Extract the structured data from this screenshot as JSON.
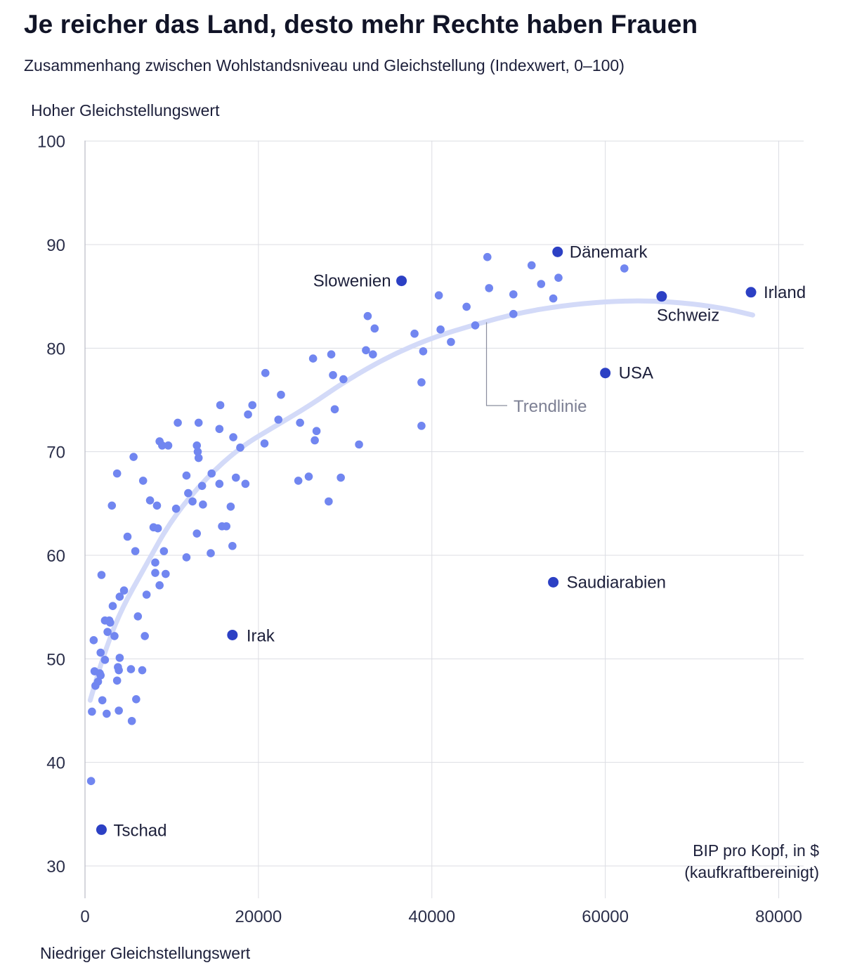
{
  "title": "Je reicher das Land, desto mehr Rechte haben Frauen",
  "subtitle": "Zusammenhang zwischen Wohlstandsniveau und Gleichstellung (Indexwert, 0–100)",
  "colors": {
    "point": "#7186f0",
    "highlight": "#2c40c4",
    "trend": "#d3daf8",
    "grid": "#dcdde3",
    "axis": "#b9bbc6"
  },
  "chart_data": {
    "type": "scatter",
    "ylabel_top": "Hoher Gleichstellungswert",
    "ylabel_bottom": "Niedriger Gleichstellungswert",
    "xlabel_line1": "BIP pro Kopf, in $",
    "xlabel_line2": "(kaufkraftbereinigt)",
    "xlim": [
      0,
      83000
    ],
    "ylim": [
      26,
      100
    ],
    "xticks": [
      0,
      20000,
      40000,
      60000,
      80000
    ],
    "xtick_labels": [
      "0",
      "20000",
      "40000",
      "60000",
      "80000"
    ],
    "yticks": [
      30,
      40,
      50,
      60,
      70,
      80,
      90,
      100
    ],
    "ytick_labels": [
      "30",
      "40",
      "50",
      "60",
      "70",
      "80",
      "90",
      "100"
    ],
    "grid": true,
    "trend_label": "Trendlinie",
    "trend": [
      [
        600,
        46
      ],
      [
        2000,
        50
      ],
      [
        4000,
        54.5
      ],
      [
        7000,
        59
      ],
      [
        10000,
        63.5
      ],
      [
        14000,
        67.5
      ],
      [
        18000,
        70.5
      ],
      [
        22000,
        72.5
      ],
      [
        26000,
        74.5
      ],
      [
        30000,
        76.8
      ],
      [
        35000,
        79.2
      ],
      [
        40000,
        81
      ],
      [
        45000,
        82.3
      ],
      [
        50000,
        83.4
      ],
      [
        55000,
        84.1
      ],
      [
        60000,
        84.5
      ],
      [
        65000,
        84.6
      ],
      [
        70000,
        84.3
      ],
      [
        74000,
        83.8
      ],
      [
        77000,
        83.2
      ]
    ],
    "highlighted": [
      {
        "name": "Tschad",
        "x": 1900,
        "y": 33.5
      },
      {
        "name": "Irak",
        "x": 17000,
        "y": 52.3
      },
      {
        "name": "Slowenien",
        "x": 36500,
        "y": 86.5
      },
      {
        "name": "Dänemark",
        "x": 54500,
        "y": 89.3
      },
      {
        "name": "Schweiz",
        "x": 66500,
        "y": 85
      },
      {
        "name": "Irland",
        "x": 76800,
        "y": 85.4
      },
      {
        "name": "USA",
        "x": 60000,
        "y": 77.6
      },
      {
        "name": "Saudiarabien",
        "x": 54000,
        "y": 57.4
      }
    ],
    "points": [
      [
        700,
        38.2
      ],
      [
        800,
        44.9
      ],
      [
        1000,
        51.8
      ],
      [
        1100,
        48.8
      ],
      [
        1200,
        47.4
      ],
      [
        1500,
        47.8
      ],
      [
        1700,
        48.6
      ],
      [
        1800,
        48.4
      ],
      [
        1800,
        50.6
      ],
      [
        1900,
        58.1
      ],
      [
        2000,
        46
      ],
      [
        2300,
        49.9
      ],
      [
        2300,
        53.7
      ],
      [
        2500,
        44.7
      ],
      [
        2600,
        52.6
      ],
      [
        2800,
        53.7
      ],
      [
        2900,
        53.5
      ],
      [
        3100,
        64.8
      ],
      [
        3200,
        55.1
      ],
      [
        3400,
        52.2
      ],
      [
        3700,
        67.9
      ],
      [
        3700,
        47.9
      ],
      [
        3800,
        49.2
      ],
      [
        3900,
        48.9
      ],
      [
        3900,
        45
      ],
      [
        4000,
        56
      ],
      [
        4000,
        50.1
      ],
      [
        4500,
        56.6
      ],
      [
        4900,
        61.8
      ],
      [
        5300,
        49
      ],
      [
        5400,
        44
      ],
      [
        5600,
        69.5
      ],
      [
        5800,
        60.4
      ],
      [
        5900,
        46.1
      ],
      [
        6100,
        54.1
      ],
      [
        6600,
        48.9
      ],
      [
        6700,
        67.2
      ],
      [
        6900,
        52.2
      ],
      [
        7100,
        56.2
      ],
      [
        7500,
        65.3
      ],
      [
        7900,
        62.7
      ],
      [
        8100,
        59.3
      ],
      [
        8100,
        58.3
      ],
      [
        8300,
        64.8
      ],
      [
        8400,
        62.6
      ],
      [
        8600,
        57.1
      ],
      [
        8600,
        71
      ],
      [
        8900,
        70.6
      ],
      [
        9100,
        60.4
      ],
      [
        9300,
        58.2
      ],
      [
        9600,
        70.6
      ],
      [
        10500,
        64.5
      ],
      [
        10700,
        72.8
      ],
      [
        11700,
        67.7
      ],
      [
        11700,
        59.8
      ],
      [
        11900,
        66
      ],
      [
        12400,
        65.2
      ],
      [
        12900,
        62.1
      ],
      [
        12900,
        70.6
      ],
      [
        13000,
        70
      ],
      [
        13100,
        69.4
      ],
      [
        13100,
        72.8
      ],
      [
        13500,
        66.7
      ],
      [
        13600,
        64.9
      ],
      [
        14500,
        60.2
      ],
      [
        14600,
        67.9
      ],
      [
        15500,
        72.2
      ],
      [
        15500,
        66.9
      ],
      [
        15600,
        74.5
      ],
      [
        15800,
        62.8
      ],
      [
        16300,
        62.8
      ],
      [
        16800,
        64.7
      ],
      [
        17000,
        60.9
      ],
      [
        17100,
        71.4
      ],
      [
        17400,
        67.5
      ],
      [
        17900,
        70.4
      ],
      [
        18500,
        66.9
      ],
      [
        18800,
        73.6
      ],
      [
        19300,
        74.5
      ],
      [
        20700,
        70.8
      ],
      [
        20800,
        77.6
      ],
      [
        22300,
        73.1
      ],
      [
        22600,
        75.5
      ],
      [
        24600,
        67.2
      ],
      [
        24800,
        72.8
      ],
      [
        25800,
        67.6
      ],
      [
        26300,
        79
      ],
      [
        26500,
        71.1
      ],
      [
        26700,
        72
      ],
      [
        28100,
        65.2
      ],
      [
        28400,
        79.4
      ],
      [
        28600,
        77.4
      ],
      [
        28800,
        74.1
      ],
      [
        29500,
        67.5
      ],
      [
        29800,
        77
      ],
      [
        31600,
        70.7
      ],
      [
        32400,
        79.8
      ],
      [
        32600,
        83.1
      ],
      [
        33200,
        79.4
      ],
      [
        33400,
        81.9
      ],
      [
        38000,
        81.4
      ],
      [
        38800,
        72.5
      ],
      [
        38800,
        76.7
      ],
      [
        39000,
        79.7
      ],
      [
        40800,
        85.1
      ],
      [
        41000,
        81.8
      ],
      [
        42200,
        80.6
      ],
      [
        44000,
        84
      ],
      [
        45000,
        82.2
      ],
      [
        46400,
        88.8
      ],
      [
        46600,
        85.8
      ],
      [
        49400,
        83.3
      ],
      [
        49400,
        85.2
      ],
      [
        51500,
        88
      ],
      [
        52600,
        86.2
      ],
      [
        54000,
        84.8
      ],
      [
        54600,
        86.8
      ],
      [
        62200,
        87.7
      ]
    ]
  }
}
